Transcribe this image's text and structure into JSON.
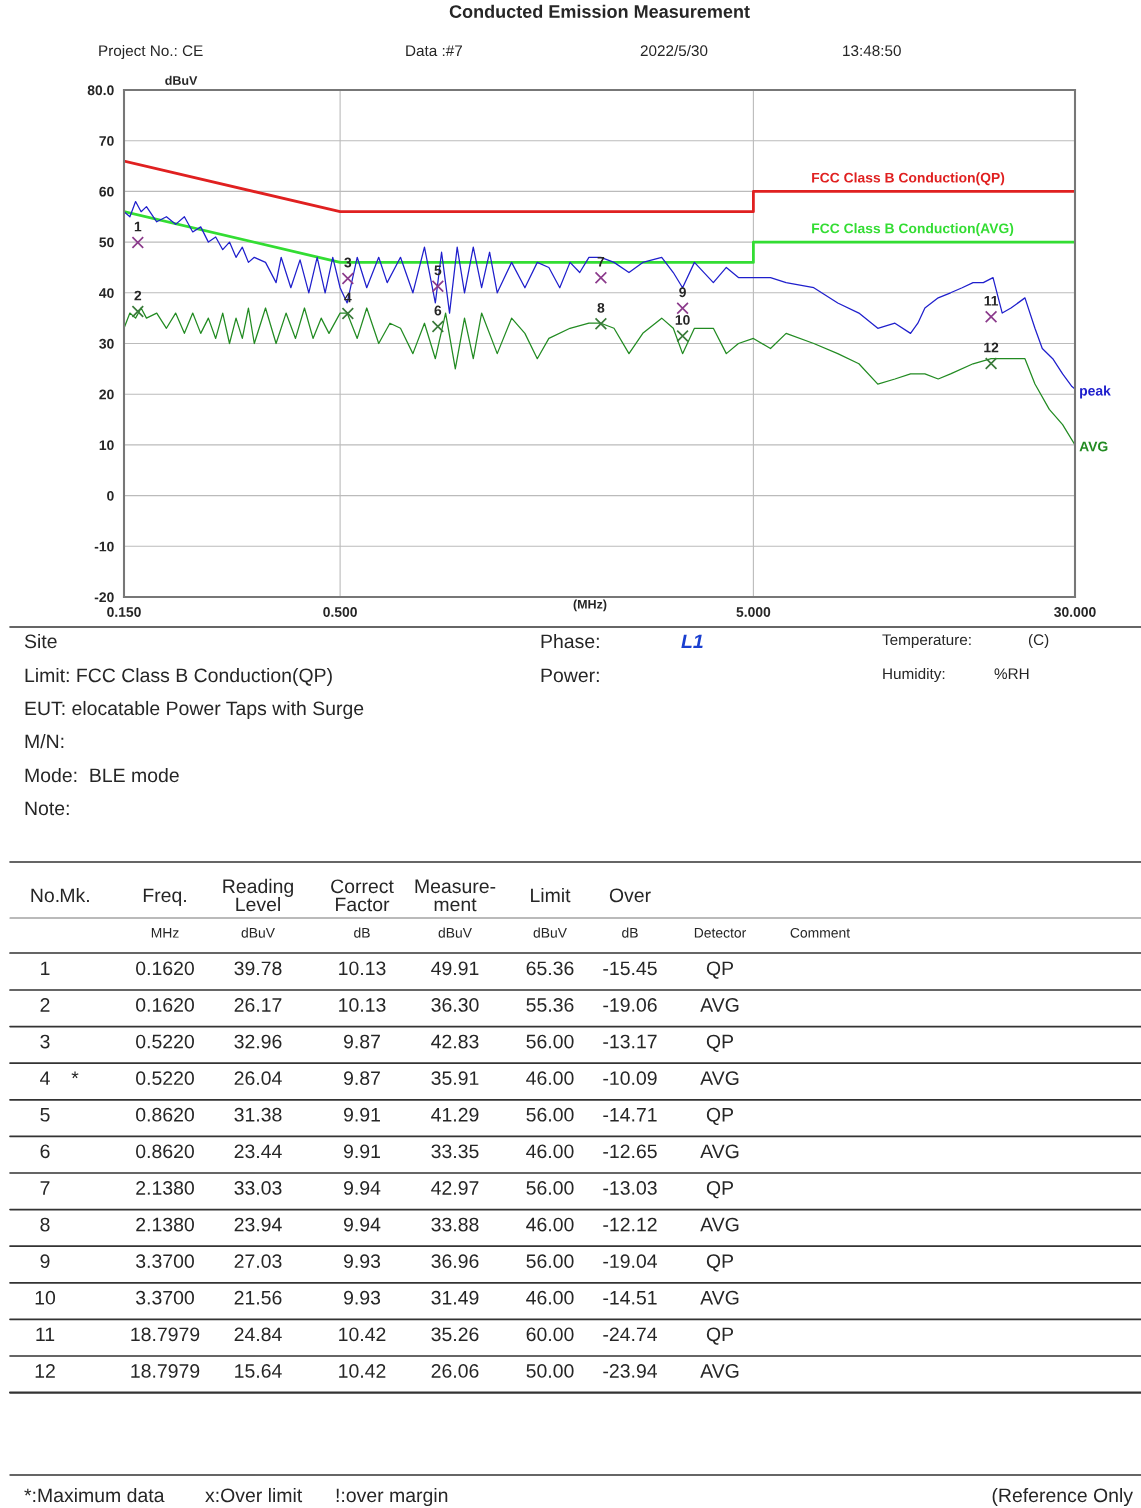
{
  "chart_data": {
    "type": "line",
    "title": "Conducted Emission Measurement",
    "xlabel": "(MHz)",
    "ylabel": "dBuV",
    "log": "x",
    "grid": true,
    "legend": false,
    "xlim": [
      0.15,
      30
    ],
    "xticks": [
      {
        "value": 0.15,
        "label": "0.150"
      },
      {
        "value": 0.5,
        "label": "0.500"
      },
      {
        "value": 5,
        "label": "5.000"
      },
      {
        "value": 30,
        "label": "30.000"
      }
    ],
    "ylim": [
      -20,
      80
    ],
    "yticks": [
      -20,
      -10,
      0,
      10,
      20,
      30,
      40,
      50,
      60,
      70,
      {
        "value": 80,
        "label": "80.0"
      }
    ],
    "series": [
      {
        "name": "FCC Class B Conduction(QP)",
        "color": "#e02020",
        "x": [
          0.15,
          0.5,
          5,
          5,
          30
        ],
        "values": [
          66,
          56,
          56,
          60,
          60
        ]
      },
      {
        "name": "FCC Class B Conduction(AVG)",
        "color": "#33dd33",
        "x": [
          0.15,
          0.5,
          5,
          5,
          30
        ],
        "values": [
          56,
          46,
          46,
          50,
          50
        ]
      },
      {
        "name": "peak",
        "color": "#1f1fcc",
        "x": [
          0.15,
          0.155,
          0.16,
          0.165,
          0.17,
          0.18,
          0.19,
          0.2,
          0.21,
          0.22,
          0.23,
          0.24,
          0.25,
          0.26,
          0.27,
          0.28,
          0.29,
          0.3,
          0.31,
          0.33,
          0.35,
          0.36,
          0.38,
          0.4,
          0.42,
          0.44,
          0.46,
          0.48,
          0.5,
          0.52,
          0.55,
          0.58,
          0.62,
          0.65,
          0.7,
          0.75,
          0.8,
          0.85,
          0.88,
          0.92,
          0.96,
          1.0,
          1.05,
          1.1,
          1.15,
          1.2,
          1.3,
          1.4,
          1.5,
          1.6,
          1.7,
          1.8,
          1.9,
          2.0,
          2.138,
          2.3,
          2.5,
          2.7,
          3.0,
          3.2,
          3.37,
          3.6,
          4.0,
          4.3,
          4.6,
          5.0,
          5.5,
          6.0,
          7.0,
          8.0,
          9.0,
          10.0,
          11.0,
          12.0,
          12.5,
          13.0,
          14.0,
          15.0,
          16.0,
          17.0,
          18.0,
          19.0,
          20.0,
          21.0,
          22.7,
          24.0,
          25.0,
          26.5,
          28.0,
          29.5,
          30.0
        ],
        "values": [
          56,
          55,
          58,
          56,
          57,
          54,
          55,
          53.5,
          55,
          52,
          53,
          50,
          51,
          48.5,
          50,
          47,
          49,
          46,
          47,
          46,
          42,
          47,
          41,
          46.5,
          40,
          47,
          40,
          47,
          41,
          38,
          47,
          41,
          47,
          42,
          47,
          40,
          49,
          38,
          48,
          36,
          49,
          40,
          49,
          41,
          48,
          40,
          46,
          41,
          46,
          45,
          41,
          46,
          44,
          47,
          47,
          46,
          44,
          46,
          47,
          44,
          41,
          46,
          42,
          45,
          43,
          43,
          43,
          42,
          41,
          38,
          36,
          33,
          34,
          32,
          34,
          37,
          39,
          40,
          41,
          42,
          42,
          43,
          36,
          37,
          39,
          33,
          29,
          27,
          24,
          21.5,
          21
        ]
      },
      {
        "name": "AVG",
        "color": "#228b22",
        "x": [
          0.15,
          0.155,
          0.16,
          0.165,
          0.17,
          0.18,
          0.19,
          0.2,
          0.21,
          0.22,
          0.23,
          0.24,
          0.25,
          0.26,
          0.27,
          0.28,
          0.29,
          0.3,
          0.31,
          0.33,
          0.35,
          0.37,
          0.39,
          0.41,
          0.43,
          0.45,
          0.47,
          0.5,
          0.52,
          0.55,
          0.58,
          0.62,
          0.66,
          0.7,
          0.75,
          0.8,
          0.85,
          0.9,
          0.95,
          1.0,
          1.05,
          1.1,
          1.2,
          1.3,
          1.4,
          1.5,
          1.6,
          1.8,
          2.0,
          2.138,
          2.3,
          2.5,
          2.7,
          3.0,
          3.2,
          3.37,
          3.6,
          4.0,
          4.3,
          4.6,
          5.0,
          5.5,
          6.0,
          7.0,
          8.0,
          9.0,
          10.0,
          11.0,
          12.0,
          13.0,
          14.0,
          15.0,
          17.0,
          18.8,
          20.0,
          22.7,
          24.0,
          26.0,
          28.0,
          30.0
        ],
        "values": [
          33,
          36,
          35,
          37,
          35,
          36,
          33,
          36,
          32,
          36,
          32,
          35,
          31,
          36,
          30,
          35,
          31,
          37,
          30,
          37,
          30,
          36,
          31,
          37,
          31,
          35,
          32,
          36,
          36,
          31,
          37,
          30,
          34,
          33,
          28,
          34,
          27,
          36,
          25,
          35,
          27,
          36,
          28,
          35,
          32,
          27,
          31,
          33,
          34,
          34,
          33,
          28,
          32,
          35,
          33,
          28,
          33,
          33,
          28,
          30,
          31,
          29,
          32,
          30,
          28,
          26,
          22,
          23,
          24,
          24,
          23,
          24,
          26,
          27,
          27,
          27,
          22,
          17,
          14,
          10
        ]
      },
      {
        "type": "scatter",
        "marker": "cross",
        "color": "#8b3a8b",
        "x": [
          0.162,
          0.522,
          0.862,
          2.138,
          3.37,
          18.7979
        ],
        "values": [
          49.91,
          42.83,
          41.29,
          42.97,
          36.96,
          35.26
        ]
      },
      {
        "type": "scatter",
        "marker": "cross",
        "color": "#3a7a3a",
        "x": [
          0.162,
          0.522,
          0.862,
          2.138,
          3.37,
          18.7979
        ],
        "values": [
          36.3,
          35.91,
          33.35,
          33.88,
          31.49,
          26.06
        ]
      }
    ],
    "annotations": [
      "Project No.: CE",
      "Data :#7",
      "2022/5/30",
      "13:48:50",
      "Site",
      "Phase:",
      "L1",
      "Temperature:",
      "(C)",
      "Limit: FCC Class B Conduction(QP)",
      "Power:",
      "Humidity:",
      "%RH",
      "EUT: elocatable Power Taps with Surge",
      "M/N:",
      "Mode:  BLE mode",
      "Note:",
      "*:Maximum data",
      "x:Over limit",
      "!:over margin",
      "(Reference Only",
      {
        "text": "1",
        "x": 0.162,
        "y": 49.91
      },
      {
        "text": "2",
        "x": 0.162,
        "y": 36.3
      },
      {
        "text": "3",
        "x": 0.522,
        "y": 42.83
      },
      {
        "text": "4",
        "x": 0.522,
        "y": 35.91
      },
      {
        "text": "5",
        "x": 0.862,
        "y": 41.29
      },
      {
        "text": "6",
        "x": 0.862,
        "y": 33.35
      },
      {
        "text": "7",
        "x": 2.138,
        "y": 42.97
      },
      {
        "text": "8",
        "x": 2.138,
        "y": 33.88
      },
      {
        "text": "9",
        "x": 3.37,
        "y": 36.96
      },
      {
        "text": "10",
        "x": 3.37,
        "y": 31.49
      },
      {
        "text": "11",
        "x": 18.7979,
        "y": 35.26
      },
      {
        "text": "12",
        "x": 18.7979,
        "y": 26.06
      },
      "No.\tMk.\tFreq.\tReading\nLevel\tCorrect\nFactor\tMeasure-\nment\tLimit\tOver\t\t",
      "\t\tMHz\tdBuV\tdB\tdBuV\tdBuV\tdB\tDetector\tComment",
      "1\t\t0.1620\t39.78\t10.13\t49.91\t65.36\t-15.45\tQP\t",
      "2\t\t0.1620\t26.17\t10.13\t36.30\t55.36\t-19.06\tAVG\t",
      "3\t\t0.5220\t32.96\t9.87\t42.83\t56.00\t-13.17\tQP\t",
      "4\t*\t0.5220\t26.04\t9.87\t35.91\t46.00\t-10.09\tAVG\t",
      "5\t\t0.8620\t31.38\t9.91\t41.29\t56.00\t-14.71\tQP\t",
      "6\t\t0.8620\t23.44\t9.91\t33.35\t46.00\t-12.65\tAVG\t",
      "7\t\t2.1380\t33.03\t9.94\t42.97\t56.00\t-13.03\tQP\t",
      "8\t\t2.1380\t23.94\t9.94\t33.88\t46.00\t-12.12\tAVG\t",
      "9\t\t3.3700\t27.03\t9.93\t36.96\t56.00\t-19.04\tQP\t",
      "10\t\t3.3700\t21.56\t9.93\t31.49\t46.00\t-14.51\tAVG\t",
      "11\t\t18.7979\t24.84\t10.42\t35.26\t60.00\t-24.74\tQP\t",
      "12\t\t18.7979\t15.64\t10.42\t26.06\t50.00\t-23.94\tAVG\t"
    ]
  }
}
